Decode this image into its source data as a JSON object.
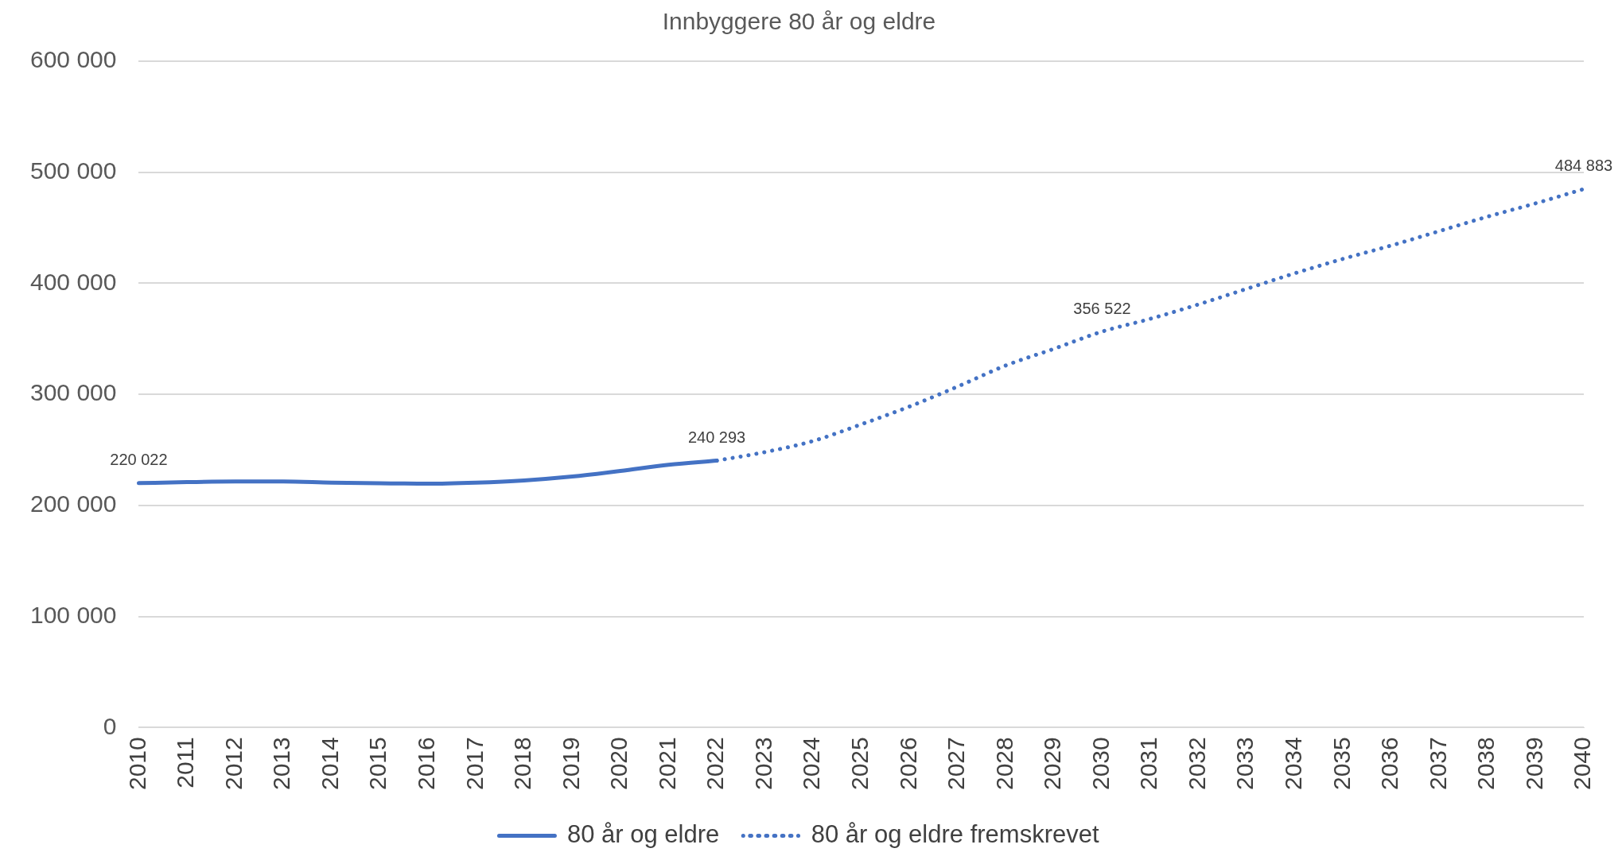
{
  "chart_data": {
    "type": "line",
    "title": "Innbyggere 80 år og eldre",
    "categories": [
      "2010",
      "2011",
      "2012",
      "2013",
      "2014",
      "2015",
      "2016",
      "2017",
      "2018",
      "2019",
      "2020",
      "2021",
      "2022",
      "2023",
      "2024",
      "2025",
      "2026",
      "2027",
      "2028",
      "2029",
      "2030",
      "2031",
      "2032",
      "2033",
      "2034",
      "2035",
      "2036",
      "2037",
      "2038",
      "2039",
      "2040"
    ],
    "series": [
      {
        "name": "80 år og eldre",
        "color": "#4472c4",
        "line_style": "solid",
        "values": [
          220022,
          221000,
          221500,
          221500,
          220500,
          220000,
          219500,
          220500,
          222500,
          226000,
          231000,
          236500,
          240293,
          null,
          null,
          null,
          null,
          null,
          null,
          null,
          null,
          null,
          null,
          null,
          null,
          null,
          null,
          null,
          null,
          null,
          null
        ],
        "value_labels": [
          "220 022",
          null,
          null,
          null,
          null,
          null,
          null,
          null,
          null,
          null,
          null,
          null,
          "240 293",
          null,
          null,
          null,
          null,
          null,
          null,
          null,
          null,
          null,
          null,
          null,
          null,
          null,
          null,
          null,
          null,
          null,
          null
        ]
      },
      {
        "name": "80 år og eldre fremskrevet",
        "color": "#4472c4",
        "line_style": "dotted",
        "values": [
          null,
          null,
          null,
          null,
          null,
          null,
          null,
          null,
          null,
          null,
          null,
          null,
          240293,
          248000,
          258000,
          273000,
          289000,
          307000,
          326000,
          341000,
          356522,
          368000,
          381000,
          395000,
          409000,
          422000,
          434000,
          447000,
          460000,
          472000,
          484883
        ],
        "value_labels": [
          null,
          null,
          null,
          null,
          null,
          null,
          null,
          null,
          null,
          null,
          null,
          null,
          null,
          null,
          null,
          null,
          null,
          null,
          null,
          null,
          "356 522",
          null,
          null,
          null,
          null,
          null,
          null,
          null,
          null,
          null,
          "484 883"
        ]
      }
    ],
    "ylim": [
      0,
      600000
    ],
    "yticks": [
      {
        "value": 0,
        "label": "0"
      },
      {
        "value": 100000,
        "label": "100 000"
      },
      {
        "value": 200000,
        "label": "200 000"
      },
      {
        "value": 300000,
        "label": "300 000"
      },
      {
        "value": 400000,
        "label": "400 000"
      },
      {
        "value": 500000,
        "label": "500 000"
      },
      {
        "value": 600000,
        "label": "600 000"
      }
    ],
    "grid": "y",
    "legend": "bottom",
    "marker": "none"
  }
}
